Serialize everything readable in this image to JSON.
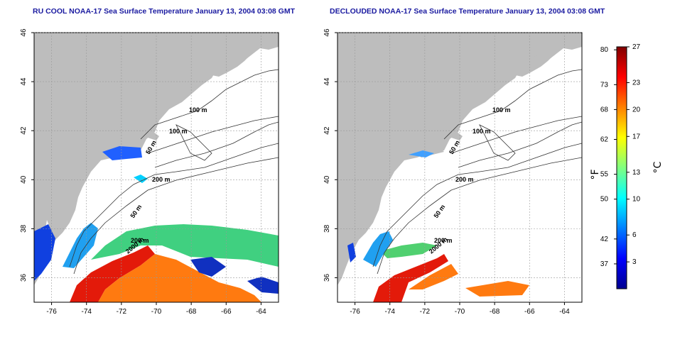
{
  "panels": [
    {
      "title": "RU COOL NOAA-17 Sea Surface Temperature January 13, 2004 03:08 GMT",
      "contour_labels": [
        "100 m",
        "100 m",
        "50 m",
        "200 m",
        "50 m",
        "200 m",
        "2000 m"
      ]
    },
    {
      "title": "DECLOUDED NOAA-17 Sea Surface Temperature January 13, 2004 03:08 GMT",
      "contour_labels": [
        "100 m",
        "100 m",
        "50 m",
        "200 m",
        "50 m",
        "200 m",
        "2000 m"
      ]
    }
  ],
  "axes": {
    "x_ticks": [
      "-76",
      "-74",
      "-72",
      "-70",
      "-68",
      "-66",
      "-64"
    ],
    "y_ticks": [
      "36",
      "38",
      "40",
      "42",
      "44",
      "46"
    ],
    "xlim": [
      -77,
      -63
    ],
    "ylim": [
      35,
      46
    ]
  },
  "colorbar": {
    "fahrenheit_label": "°F",
    "celsius_label": "°C",
    "f_ticks": [
      "80",
      "73",
      "68",
      "62",
      "55",
      "50",
      "42",
      "37"
    ],
    "f_positions": [
      80,
      73,
      68,
      62,
      55,
      50,
      42,
      37
    ],
    "c_ticks": [
      "27",
      "23",
      "20",
      "17",
      "13",
      "10",
      "6",
      "3"
    ],
    "c_positions": [
      27,
      23,
      20,
      17,
      13,
      10,
      6,
      3
    ],
    "range_c": [
      0,
      27
    ],
    "colors": [
      "#00008f",
      "#0000ff",
      "#0080ff",
      "#00ffff",
      "#80ff80",
      "#ffff00",
      "#ff8000",
      "#ff0000",
      "#800000"
    ]
  },
  "colors": {
    "land": "#bdbdbd",
    "title": "#1a1aa0"
  }
}
